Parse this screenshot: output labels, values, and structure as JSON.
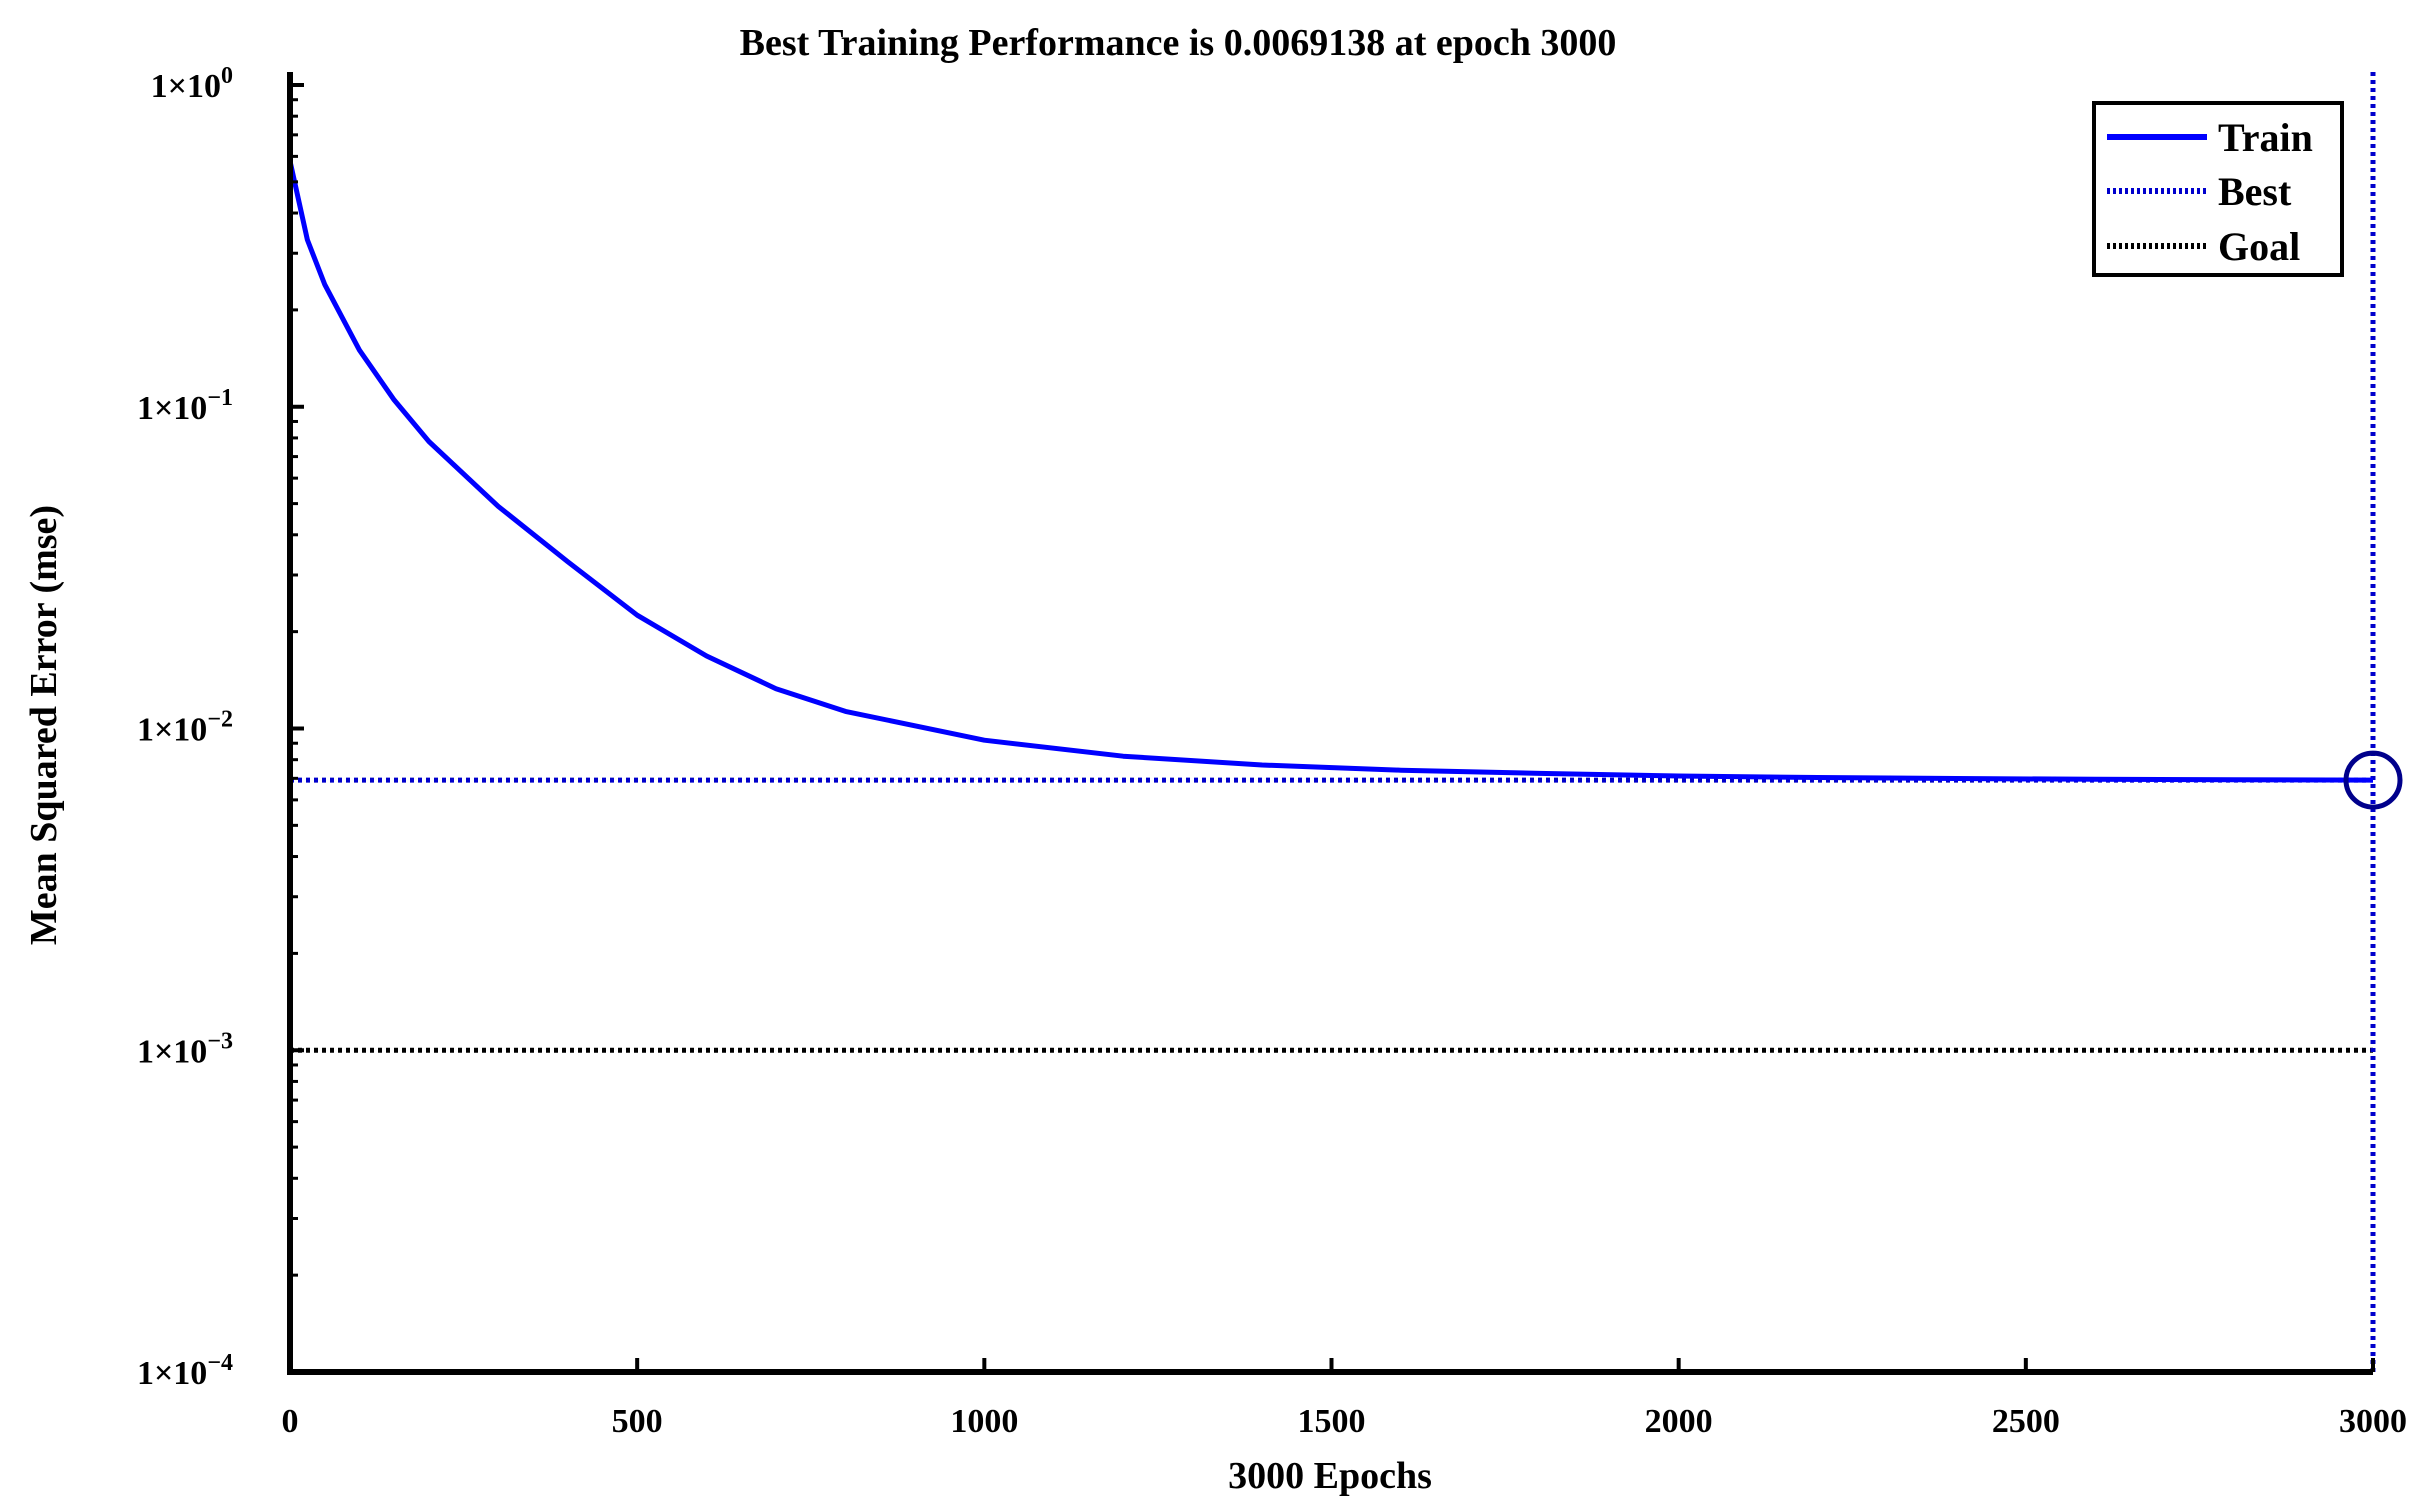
{
  "chart_data": {
    "type": "line",
    "title": "Best Training Performance is 0.0069138 at epoch 3000",
    "xlabel": "3000 Epochs",
    "ylabel": "Mean Squared Error  (mse)",
    "xlim": [
      0,
      3000
    ],
    "ylim": [
      0.0001,
      1
    ],
    "yscale": "log",
    "grid": false,
    "legend_position": "top-right",
    "x_ticks": [
      "0",
      "500",
      "1000",
      "1500",
      "2000",
      "2500",
      "3000"
    ],
    "x_tick_values": [
      0,
      500,
      1000,
      1500,
      2000,
      2500,
      3000
    ],
    "y_ticks": [
      {
        "value": 1,
        "base": "1×10",
        "exp": "0"
      },
      {
        "value": 0.1,
        "base": "1×10",
        "exp": "−1"
      },
      {
        "value": 0.01,
        "base": "1×10",
        "exp": "−2"
      },
      {
        "value": 0.001,
        "base": "1×10",
        "exp": "−3"
      },
      {
        "value": 0.0001,
        "base": "1×10",
        "exp": "−4"
      }
    ],
    "series": [
      {
        "name": "Train",
        "style": "solid",
        "color": "#0000ff",
        "x": [
          0,
          25,
          50,
          100,
          150,
          200,
          300,
          400,
          500,
          600,
          700,
          800,
          1000,
          1200,
          1400,
          1600,
          1800,
          2000,
          2200,
          2400,
          2600,
          2800,
          3000
        ],
        "y": [
          0.58,
          0.33,
          0.24,
          0.15,
          0.105,
          0.078,
          0.049,
          0.033,
          0.0225,
          0.0168,
          0.0133,
          0.0113,
          0.0092,
          0.0082,
          0.0077,
          0.00742,
          0.00725,
          0.00712,
          0.00704,
          0.00699,
          0.00695,
          0.00693,
          0.0069138
        ]
      }
    ],
    "best": {
      "name": "Best",
      "style": "dotted",
      "color": "#0000cc",
      "epoch": 3000,
      "value": 0.0069138
    },
    "goal": {
      "name": "Goal",
      "style": "dotted",
      "color": "#000000",
      "value": 0.001
    }
  }
}
